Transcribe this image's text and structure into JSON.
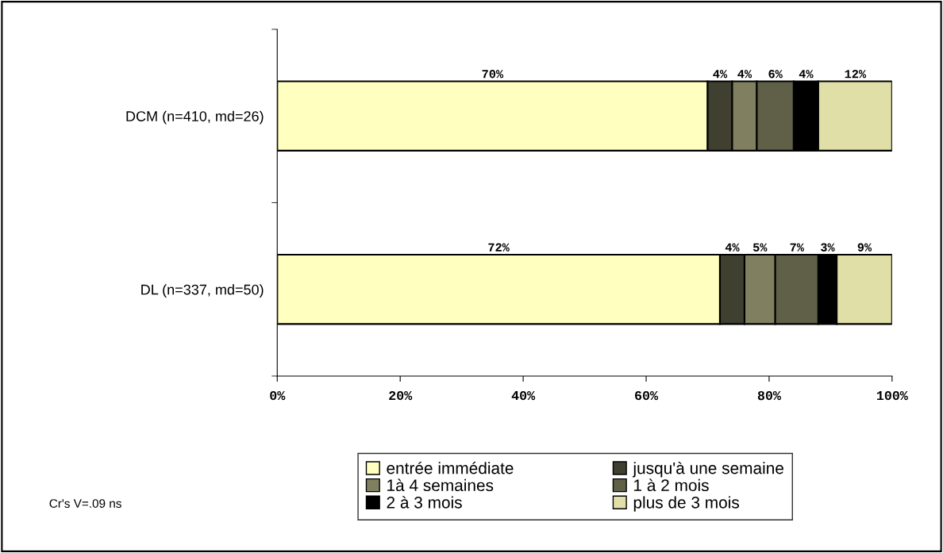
{
  "chart_data": {
    "type": "bar",
    "orientation": "horizontal",
    "stacked": true,
    "categories": [
      "DCM (n=410, md=26)",
      "DL (n=337, md=50)"
    ],
    "series": [
      {
        "name": "entrée immédiate",
        "color": "#ffffc0",
        "values": [
          70,
          72
        ],
        "value_labels": [
          "70%",
          "72%"
        ]
      },
      {
        "name": "jusqu'à une semaine",
        "color": "#404030",
        "values": [
          4,
          4
        ],
        "value_labels": [
          "4%",
          "4%"
        ]
      },
      {
        "name": "1à 4 semaines",
        "color": "#808060",
        "values": [
          4,
          5
        ],
        "value_labels": [
          "4%",
          "5%"
        ]
      },
      {
        "name": "1 à 2 mois",
        "color": "#606048",
        "values": [
          6,
          7
        ],
        "value_labels": [
          "6%",
          "7%"
        ]
      },
      {
        "name": "2 à 3 mois",
        "color": "#000000",
        "values": [
          4,
          3
        ],
        "value_labels": [
          "4%",
          "3%"
        ]
      },
      {
        "name": "plus de 3 mois",
        "color": "#e0dfa8",
        "values": [
          12,
          9
        ],
        "value_labels": [
          "12%",
          "9%"
        ]
      }
    ],
    "xlim": [
      0,
      100
    ],
    "xticks": [
      {
        "value": 0,
        "label": "0%"
      },
      {
        "value": 20,
        "label": "20%"
      },
      {
        "value": 40,
        "label": "40%"
      },
      {
        "value": 60,
        "label": "60%"
      },
      {
        "value": 80,
        "label": "80%"
      },
      {
        "value": 100,
        "label": "100%"
      }
    ],
    "grid": false,
    "legend": "bottom",
    "annotations": [
      "Cr's V=.09 ns"
    ]
  }
}
